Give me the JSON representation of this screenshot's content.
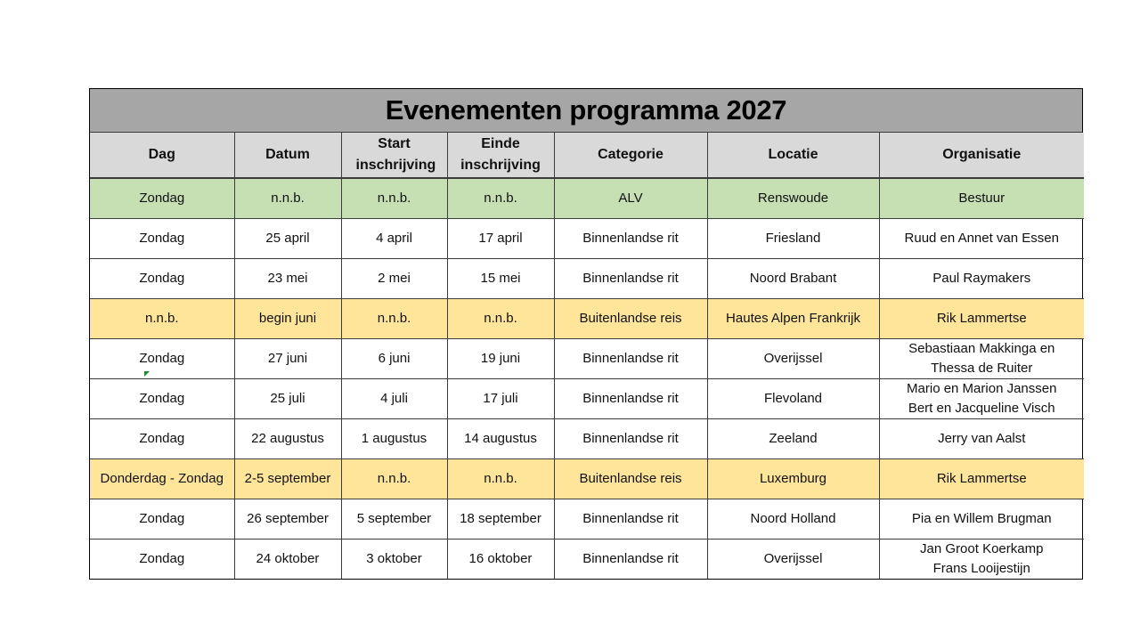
{
  "title": "Evenementen programma 2027",
  "headers": [
    "Dag",
    "Datum",
    "Start inschrijving",
    "Einde inschrijving",
    "Categorie",
    "Locatie",
    "Organisatie"
  ],
  "colors": {
    "title_bg": "#a6a6a6",
    "header_bg": "#d9d9d9",
    "green_row": "#c6e0b4",
    "yellow_row": "#ffe599"
  },
  "rows": [
    {
      "style": "green",
      "cells": [
        "Zondag",
        "n.n.b.",
        "n.n.b.",
        "n.n.b.",
        "ALV",
        "Renswoude",
        "Bestuur"
      ]
    },
    {
      "style": "white",
      "cells": [
        "Zondag",
        "25 april",
        "4 april",
        "17 april",
        "Binnenlandse rit",
        "Friesland",
        "Ruud en Annet van Essen"
      ]
    },
    {
      "style": "white",
      "cells": [
        "Zondag",
        "23 mei",
        "2 mei",
        "15 mei",
        "Binnenlandse rit",
        "Noord Brabant",
        "Paul Raymakers"
      ]
    },
    {
      "style": "yellow",
      "cells": [
        "n.n.b.",
        "begin juni",
        "n.n.b.",
        "n.n.b.",
        "Buitenlandse reis",
        "Hautes Alpen Frankrijk",
        "Rik Lammertse"
      ]
    },
    {
      "style": "white",
      "cells": [
        "Zondag",
        "27 juni",
        "6 juni",
        "19 juni",
        "Binnenlandse rit",
        "Overijssel",
        "Sebastiaan Makkinga en\nThessa de Ruiter"
      ]
    },
    {
      "style": "white",
      "cells": [
        "Zondag",
        "25 juli",
        "4 juli",
        "17 juli",
        "Binnenlandse rit",
        "Flevoland",
        "Mario en Marion Janssen\nBert en Jacqueline Visch"
      ]
    },
    {
      "style": "white",
      "cells": [
        "Zondag",
        "22 augustus",
        "1 augustus",
        "14 augustus",
        "Binnenlandse rit",
        "Zeeland",
        "Jerry van Aalst"
      ]
    },
    {
      "style": "yellow",
      "cells": [
        "Donderdag - Zondag",
        "2-5 september",
        "n.n.b.",
        "n.n.b.",
        "Buitenlandse reis",
        "Luxemburg",
        "Rik Lammertse"
      ]
    },
    {
      "style": "white",
      "cells": [
        "Zondag",
        "26 september",
        "5 september",
        "18 september",
        "Binnenlandse rit",
        "Noord Holland",
        "Pia en Willem Brugman"
      ]
    },
    {
      "style": "white",
      "cells": [
        "Zondag",
        "24 oktober",
        "3 oktober",
        "16 oktober",
        "Binnenlandse rit",
        "Overijssel",
        "Jan Groot Koerkamp\nFrans Looijestijn"
      ]
    }
  ]
}
